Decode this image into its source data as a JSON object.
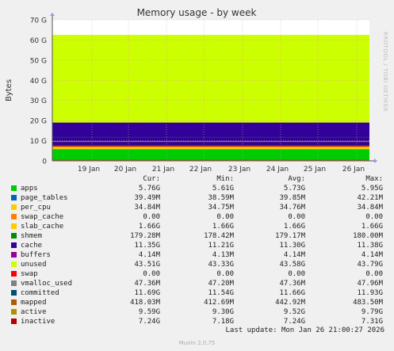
{
  "chart_data": {
    "type": "area",
    "title": "Memory usage - by week",
    "ylabel": "Bytes",
    "xlabel": "",
    "ylim": [
      0,
      70
    ],
    "y_unit": "G",
    "y_ticks": [
      "0",
      "10 G",
      "20 G",
      "30 G",
      "40 G",
      "50 G",
      "60 G",
      "70 G"
    ],
    "x_ticks": [
      "19 Jan",
      "20 Jan",
      "21 Jan",
      "22 Jan",
      "23 Jan",
      "24 Jan",
      "25 Jan",
      "26 Jan"
    ],
    "grid": true,
    "stacked": true,
    "stack_order": [
      "apps",
      "page_tables",
      "per_cpu",
      "swap_cache",
      "slab_cache",
      "shmem",
      "cache",
      "buffers",
      "unused"
    ],
    "stack_values_G": [
      5.76,
      0.04,
      0.03,
      0.0,
      1.66,
      0.18,
      11.35,
      0.004,
      43.51
    ],
    "columns": [
      "Cur:",
      "Min:",
      "Avg:",
      "Max:"
    ],
    "series": [
      {
        "name": "apps",
        "color": "#00cc00",
        "cur": "5.76G",
        "min": "5.61G",
        "avg": "5.73G",
        "max": "5.95G"
      },
      {
        "name": "page_tables",
        "color": "#0066b3",
        "cur": "39.49M",
        "min": "38.59M",
        "avg": "39.85M",
        "max": "42.21M"
      },
      {
        "name": "per_cpu",
        "color": "#ffcc00",
        "cur": "34.84M",
        "min": "34.75M",
        "avg": "34.76M",
        "max": "34.84M"
      },
      {
        "name": "swap_cache",
        "color": "#ff8000",
        "cur": "0.00",
        "min": "0.00",
        "avg": "0.00",
        "max": "0.00"
      },
      {
        "name": "slab_cache",
        "color": "#ffcc00",
        "cur": "1.66G",
        "min": "1.66G",
        "avg": "1.66G",
        "max": "1.66G"
      },
      {
        "name": "shmem",
        "color": "#008f00",
        "cur": "179.28M",
        "min": "178.42M",
        "avg": "179.17M",
        "max": "180.00M"
      },
      {
        "name": "cache",
        "color": "#330099",
        "cur": "11.35G",
        "min": "11.21G",
        "avg": "11.30G",
        "max": "11.38G"
      },
      {
        "name": "buffers",
        "color": "#990099",
        "cur": "4.14M",
        "min": "4.13M",
        "avg": "4.14M",
        "max": "4.14M"
      },
      {
        "name": "unused",
        "color": "#ccff00",
        "cur": "43.51G",
        "min": "43.33G",
        "avg": "43.58G",
        "max": "43.79G"
      },
      {
        "name": "swap",
        "color": "#ff0000",
        "cur": "0.00",
        "min": "0.00",
        "avg": "0.00",
        "max": "0.00"
      },
      {
        "name": "vmalloc_used",
        "color": "#808080",
        "cur": "47.36M",
        "min": "47.20M",
        "avg": "47.36M",
        "max": "47.96M"
      },
      {
        "name": "committed",
        "color": "#004d75",
        "cur": "11.69G",
        "min": "11.54G",
        "avg": "11.66G",
        "max": "11.93G"
      },
      {
        "name": "mapped",
        "color": "#b35a00",
        "cur": "418.03M",
        "min": "412.69M",
        "avg": "442.92M",
        "max": "483.50M"
      },
      {
        "name": "active",
        "color": "#b38f00",
        "cur": "9.59G",
        "min": "9.30G",
        "avg": "9.52G",
        "max": "9.79G"
      },
      {
        "name": "inactive",
        "color": "#b30000",
        "cur": "7.24G",
        "min": "7.18G",
        "avg": "7.24G",
        "max": "7.31G"
      }
    ],
    "line_series": {
      "committed_G": 11.69,
      "mapped_G": 0.418,
      "active_G": 9.59,
      "inactive_G": 7.24,
      "vmalloc_G": 0.047
    }
  },
  "last_update": "Last update: Mon Jan 26 21:00:27 2026",
  "footer": "Munin 2.0.75",
  "side_label": "RRDTOOL / TOBI OETIKER"
}
